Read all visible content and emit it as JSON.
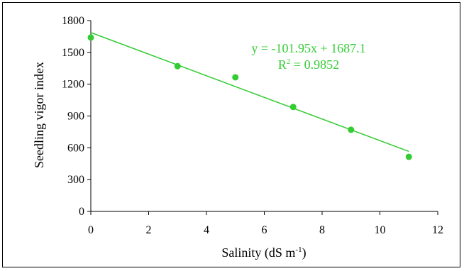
{
  "chart_data": {
    "type": "scatter",
    "xlabel": "Salinity (dS m",
    "xlabel_sup": "-1",
    "xlabel_close": ")",
    "ylabel": "Seedling vigor index",
    "xlim": [
      0,
      12
    ],
    "ylim": [
      0,
      1800
    ],
    "xticks": [
      0,
      2,
      4,
      6,
      8,
      10,
      12
    ],
    "yticks": [
      0,
      300,
      600,
      900,
      1200,
      1500,
      1800
    ],
    "grid": false,
    "series": [
      {
        "points": [
          {
            "x": 0,
            "y": 1640
          },
          {
            "x": 3,
            "y": 1370
          },
          {
            "x": 5,
            "y": 1265
          },
          {
            "x": 7,
            "y": 985
          },
          {
            "x": 9,
            "y": 770
          },
          {
            "x": 11,
            "y": 515
          }
        ],
        "color": "#33cc33"
      }
    ],
    "trendline": {
      "type": "linear",
      "slope": -101.95,
      "intercept": 1687.1,
      "x_range": [
        0,
        11
      ],
      "equation": "y = -101.95x + 1687.1",
      "r2_prefix": "R",
      "r2_sup": "2",
      "r2_suffix": " = 0.9852",
      "color": "#33cc33"
    }
  }
}
